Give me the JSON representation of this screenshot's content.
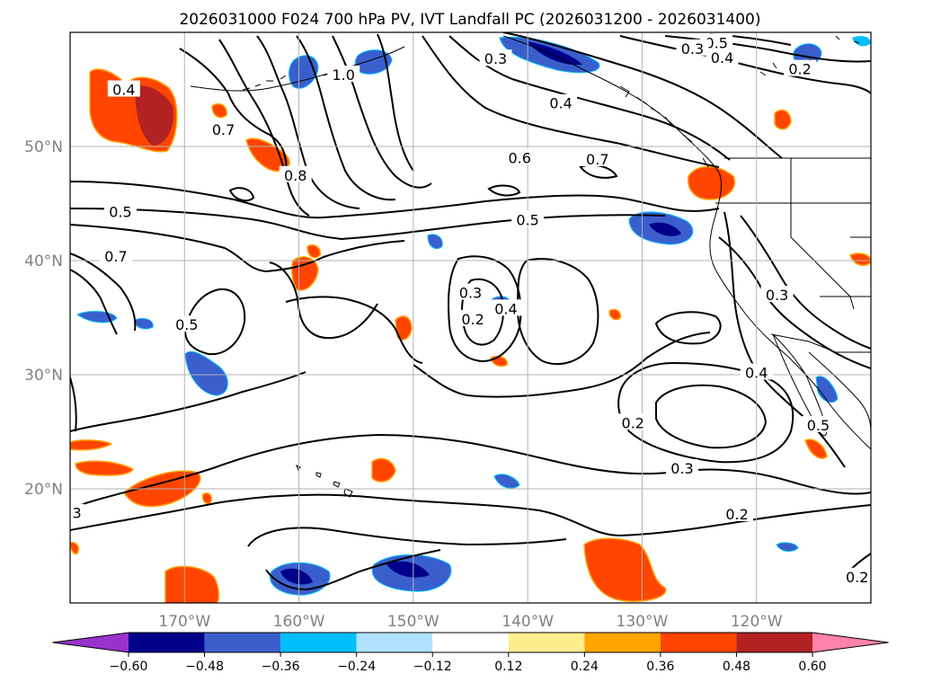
{
  "chart_data": {
    "type": "contour",
    "title": "2026031000 F024 700 hPa PV, IVT Landfall PC (2026031200 - 2026031400)",
    "lon_range": [
      -180,
      -110
    ],
    "lat_range": [
      10,
      60
    ],
    "lon_ticks": [
      {
        "value": -170,
        "label": "170°W"
      },
      {
        "value": -160,
        "label": "160°W"
      },
      {
        "value": -150,
        "label": "150°W"
      },
      {
        "value": -140,
        "label": "140°W"
      },
      {
        "value": -130,
        "label": "130°W"
      },
      {
        "value": -120,
        "label": "120°W"
      }
    ],
    "lat_ticks": [
      {
        "value": 20,
        "label": "20°N"
      },
      {
        "value": 30,
        "label": "30°N"
      },
      {
        "value": 40,
        "label": "40°N"
      },
      {
        "value": 50,
        "label": "50°N"
      }
    ],
    "gridlines": true,
    "colorbar": {
      "orientation": "horizontal",
      "extend": "both",
      "bounds": [
        -0.72,
        -0.6,
        -0.48,
        -0.36,
        -0.24,
        -0.12,
        0.12,
        0.24,
        0.36,
        0.48,
        0.6,
        0.72
      ],
      "colors": [
        "#9932cc",
        "#00008b",
        "#3a5fcd",
        "#00bfff",
        "#b0e2ff",
        "#ffffff",
        "#ffec8b",
        "#ffa500",
        "#ff4500",
        "#b22222",
        "#ff82ab"
      ],
      "tick_labels": [
        "−0.60",
        "−0.48",
        "−0.36",
        "−0.24",
        "−0.12",
        "0.12",
        "0.24",
        "0.36",
        "0.48",
        "0.60"
      ]
    },
    "pv_contour_labels": [
      {
        "text": "0.5",
        "lon": -123.5,
        "lat": 59.1
      },
      {
        "text": "0.3",
        "lon": -125.6,
        "lat": 58.6
      },
      {
        "text": "0.4",
        "lon": -123.0,
        "lat": 57.8
      },
      {
        "text": "0.2",
        "lon": -116.2,
        "lat": 56.8
      },
      {
        "text": "0.3",
        "lon": -142.8,
        "lat": 57.7
      },
      {
        "text": "1.0",
        "lon": -156.1,
        "lat": 56.3
      },
      {
        "text": "0.4",
        "lon": -175.3,
        "lat": 55.0
      },
      {
        "text": "0.4",
        "lon": -137.1,
        "lat": 53.8
      },
      {
        "text": "0.7",
        "lon": -166.6,
        "lat": 51.5
      },
      {
        "text": "0.8",
        "lon": -160.3,
        "lat": 47.5
      },
      {
        "text": "0.6",
        "lon": -140.7,
        "lat": 49.0
      },
      {
        "text": "0.7",
        "lon": -133.9,
        "lat": 48.9
      },
      {
        "text": "0.5",
        "lon": -175.6,
        "lat": 44.3
      },
      {
        "text": "0.5",
        "lon": -140.0,
        "lat": 43.6
      },
      {
        "text": "0.7",
        "lon": -176.0,
        "lat": 40.4
      },
      {
        "text": "0.3",
        "lon": -145.0,
        "lat": 37.2
      },
      {
        "text": "0.4",
        "lon": -141.9,
        "lat": 35.8
      },
      {
        "text": "0.2",
        "lon": -144.8,
        "lat": 34.9
      },
      {
        "text": "0.5",
        "lon": -169.8,
        "lat": 34.4
      },
      {
        "text": "0.2",
        "lon": -130.8,
        "lat": 25.8
      },
      {
        "text": "0.3",
        "lon": -126.5,
        "lat": 21.8
      },
      {
        "text": "0.2",
        "lon": -121.7,
        "lat": 17.8
      },
      {
        "text": "0.4",
        "lon": -120.0,
        "lat": 30.2
      },
      {
        "text": "0.3",
        "lon": -118.2,
        "lat": 37.0
      },
      {
        "text": "0.5",
        "lon": -114.6,
        "lat": 25.6
      },
      {
        "text": "0.2",
        "lon": -111.2,
        "lat": 12.3
      },
      {
        "text": "3",
        "lon": -179.4,
        "lat": 17.9
      }
    ]
  }
}
